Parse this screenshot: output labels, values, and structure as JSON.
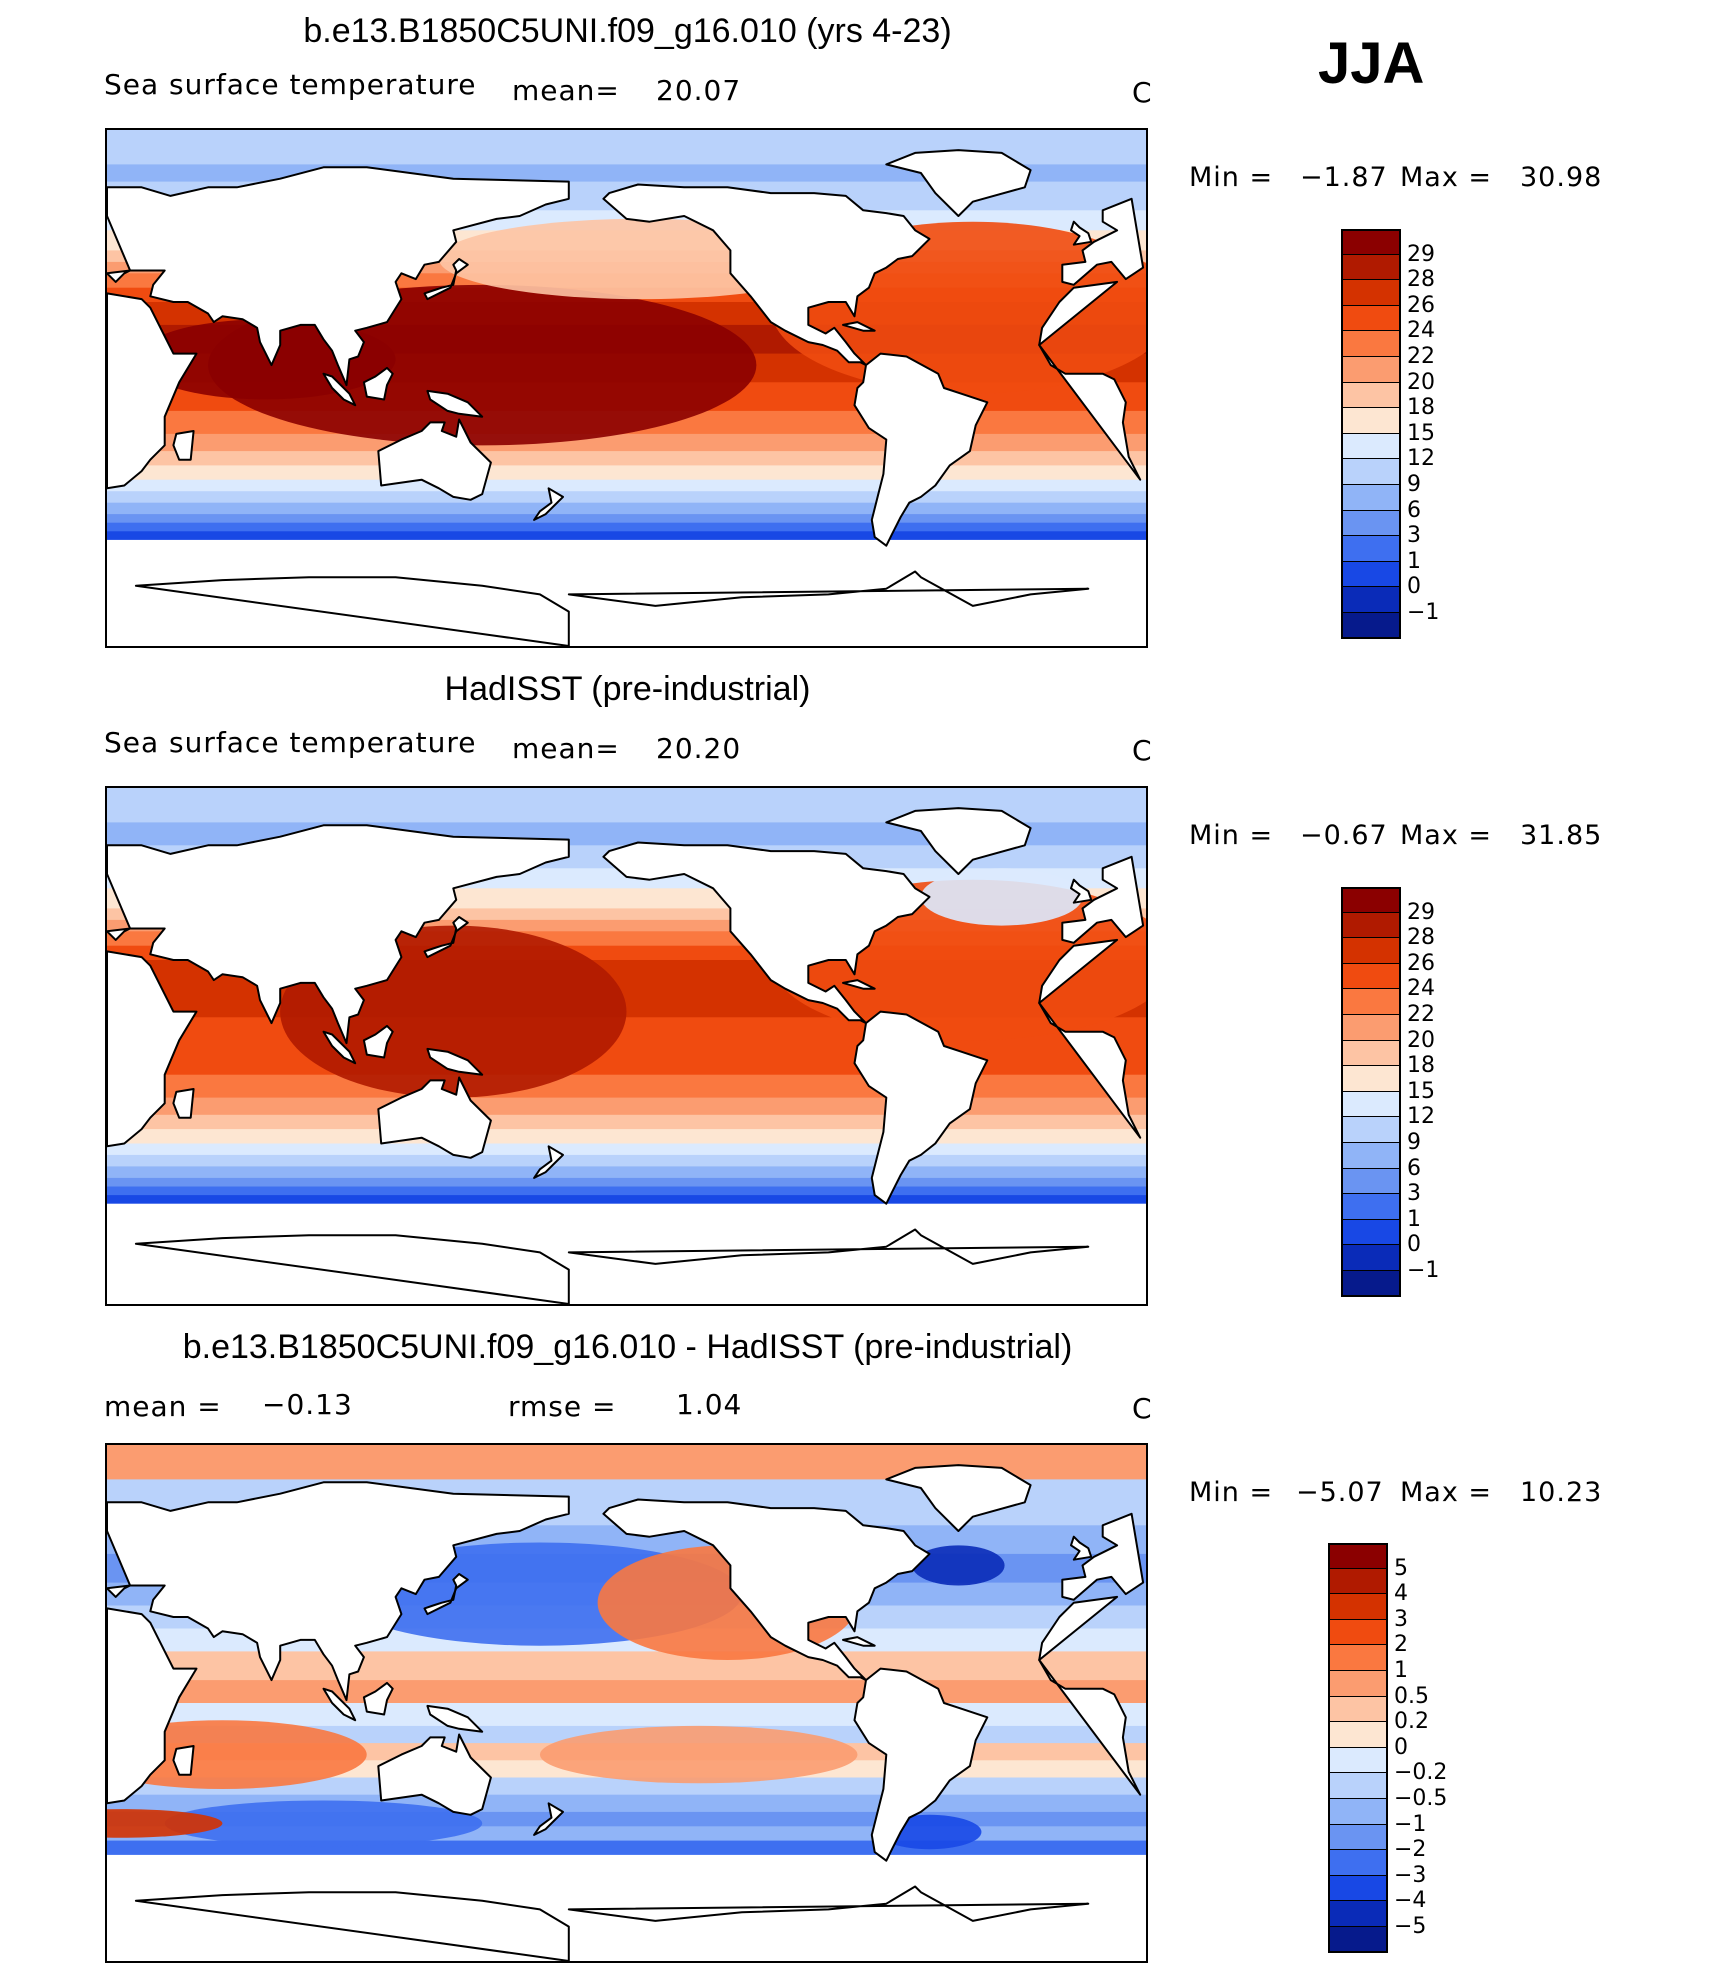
{
  "season": "JJA",
  "panels": [
    {
      "title": "b.e13.B1850C5UNI.f09_g16.010 (yrs 4-23)",
      "subtitle_left": "Sea surface temperature",
      "mean_label": "mean=",
      "mean_value": "20.07",
      "units": "C",
      "min_label": "Min =",
      "min_value": "−1.87",
      "max_label": "Max =",
      "max_value": "30.98",
      "map_style": "model_sst",
      "colorbar": {
        "levels": [
          "29",
          "28",
          "26",
          "24",
          "22",
          "20",
          "18",
          "15",
          "12",
          "9",
          "6",
          "3",
          "1",
          "0",
          "−1"
        ],
        "colors": [
          "#8b0000",
          "#b01a00",
          "#d43200",
          "#f04b10",
          "#fa7840",
          "#fb9c70",
          "#fdc4a4",
          "#fde6d2",
          "#dbeafe",
          "#b9d2fb",
          "#90b4f7",
          "#6a94f2",
          "#3e6ff0",
          "#1848e5",
          "#0a2bb8",
          "#061a8c"
        ]
      }
    },
    {
      "title": "HadISST (pre-industrial)",
      "subtitle_left": "Sea surface temperature",
      "mean_label": "mean=",
      "mean_value": "20.20",
      "units": "C",
      "min_label": "Min =",
      "min_value": "−0.67",
      "max_label": "Max =",
      "max_value": "31.85",
      "map_style": "obs_sst",
      "colorbar": {
        "levels": [
          "29",
          "28",
          "26",
          "24",
          "22",
          "20",
          "18",
          "15",
          "12",
          "9",
          "6",
          "3",
          "1",
          "0",
          "−1"
        ],
        "colors": [
          "#8b0000",
          "#b01a00",
          "#d43200",
          "#f04b10",
          "#fa7840",
          "#fb9c70",
          "#fdc4a4",
          "#fde6d2",
          "#dbeafe",
          "#b9d2fb",
          "#90b4f7",
          "#6a94f2",
          "#3e6ff0",
          "#1848e5",
          "#0a2bb8",
          "#061a8c"
        ]
      }
    },
    {
      "title": "b.e13.B1850C5UNI.f09_g16.010 - HadISST (pre-industrial)",
      "subtitle_left": "mean =",
      "mean_label": "",
      "mean_value": "−0.13",
      "rmse_label": "rmse =",
      "rmse_value": "1.04",
      "units": "C",
      "min_label": "Min =",
      "min_value": "−5.07",
      "max_label": "Max =",
      "max_value": "10.23",
      "map_style": "difference",
      "colorbar": {
        "levels": [
          "5",
          "4",
          "3",
          "2",
          "1",
          "0.5",
          "0.2",
          "0",
          "−0.2",
          "−0.5",
          "−1",
          "−2",
          "−3",
          "−4",
          "−5"
        ],
        "colors": [
          "#8b0000",
          "#b01a00",
          "#d43200",
          "#f04b10",
          "#fa7840",
          "#fb9c70",
          "#fdc4a4",
          "#fde6d2",
          "#dbeafe",
          "#b9d2fb",
          "#90b4f7",
          "#6a94f2",
          "#3e6ff0",
          "#1848e5",
          "#0a2bb8",
          "#061a8c"
        ]
      }
    }
  ]
}
